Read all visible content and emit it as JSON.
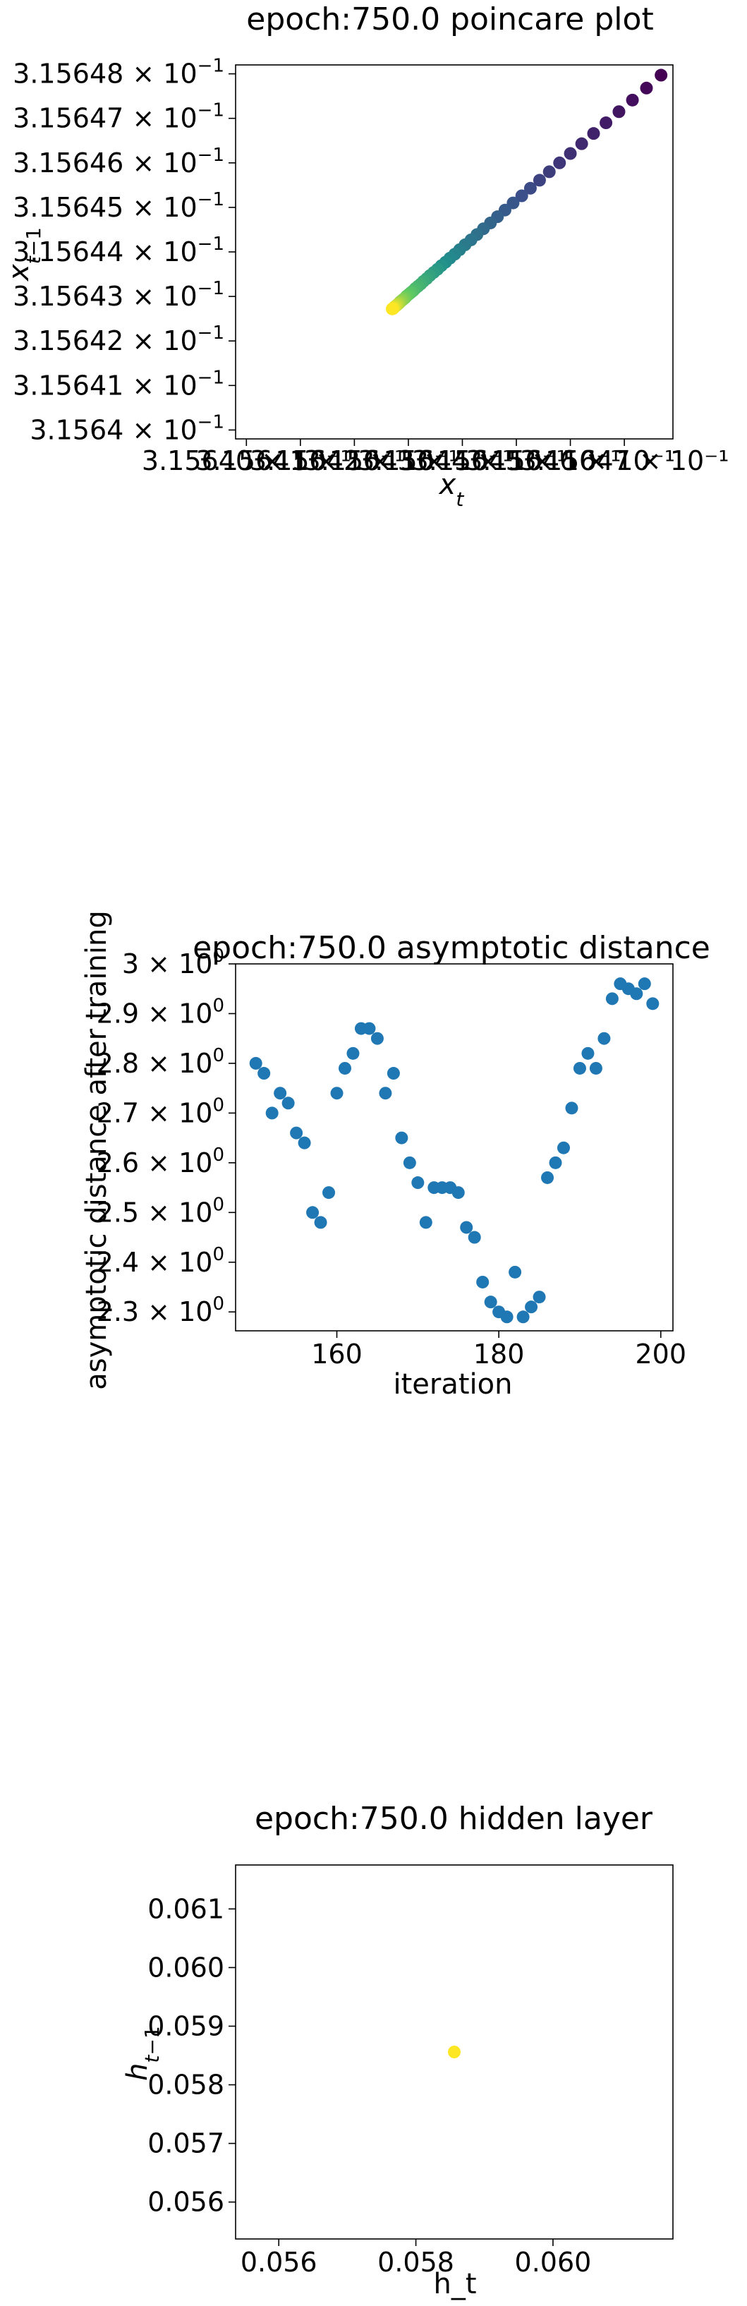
{
  "chart_data": [
    {
      "type": "scatter",
      "title": "epoch:750.0 poincare plot",
      "xlabel": "x_t",
      "ylabel": "x_{t-1}",
      "xlim": [
        0.3156398,
        0.3156479
      ],
      "ylim": [
        0.3156398,
        0.3156482
      ],
      "color_scale": "viridis",
      "x_tick_labels": [
        "3.15640 × 10⁻¹",
        "3.15641 × 10⁻¹",
        "3.15642 × 10⁻¹",
        "3.15643 × 10⁻¹",
        "3.15644 × 10⁻¹",
        "3.15645 × 10⁻¹",
        "3.15646 × 10⁻¹",
        "3.15647 × 10⁻¹"
      ],
      "x_ticks": [
        0.31564,
        0.315641,
        0.315642,
        0.315643,
        0.315644,
        0.315645,
        0.315646,
        0.315647
      ],
      "y_ticks": [
        {
          "value": 0.31564,
          "mant": "3.1564",
          "exp": "−1"
        },
        {
          "value": 0.315641,
          "mant": "3.15641",
          "exp": "−1"
        },
        {
          "value": 0.315642,
          "mant": "3.15642",
          "exp": "−1"
        },
        {
          "value": 0.315643,
          "mant": "3.15643",
          "exp": "−1"
        },
        {
          "value": 0.315644,
          "mant": "3.15644",
          "exp": "−1"
        },
        {
          "value": 0.315645,
          "mant": "3.15645",
          "exp": "−1"
        },
        {
          "value": 0.315646,
          "mant": "3.15646",
          "exp": "−1"
        },
        {
          "value": 0.315647,
          "mant": "3.15647",
          "exp": "−1"
        },
        {
          "value": 0.315648,
          "mant": "3.15648",
          "exp": "−1"
        }
      ],
      "points": [
        [
          0.31564768,
          0.31564797
        ],
        [
          0.31564741,
          0.31564768
        ],
        [
          0.31564715,
          0.31564741
        ],
        [
          0.3156469,
          0.31564715
        ],
        [
          0.31564666,
          0.3156469
        ],
        [
          0.31564643,
          0.31564666
        ],
        [
          0.31564621,
          0.31564643
        ],
        [
          0.315646,
          0.31564621
        ],
        [
          0.3156458,
          0.315646
        ],
        [
          0.31564561,
          0.3156458
        ],
        [
          0.31564543,
          0.31564561
        ],
        [
          0.31564526,
          0.31564543
        ],
        [
          0.3156451,
          0.31564526
        ],
        [
          0.31564494,
          0.3156451
        ],
        [
          0.31564479,
          0.31564494
        ],
        [
          0.31564465,
          0.31564479
        ],
        [
          0.31564452,
          0.31564465
        ],
        [
          0.31564439,
          0.31564452
        ],
        [
          0.31564427,
          0.31564439
        ],
        [
          0.31564416,
          0.31564427
        ],
        [
          0.31564405,
          0.31564416
        ],
        [
          0.31564395,
          0.31564405
        ],
        [
          0.31564386,
          0.31564395
        ],
        [
          0.31564377,
          0.31564386
        ],
        [
          0.31564369,
          0.31564377
        ],
        [
          0.31564361,
          0.31564369
        ],
        [
          0.31564354,
          0.31564361
        ],
        [
          0.31564347,
          0.31564354
        ],
        [
          0.3156434,
          0.31564347
        ],
        [
          0.31564334,
          0.3156434
        ],
        [
          0.31564328,
          0.31564334
        ],
        [
          0.31564323,
          0.31564328
        ],
        [
          0.31564318,
          0.31564323
        ],
        [
          0.31564313,
          0.31564318
        ],
        [
          0.31564309,
          0.31564313
        ],
        [
          0.31564305,
          0.31564309
        ],
        [
          0.31564301,
          0.31564305
        ],
        [
          0.31564297,
          0.31564301
        ],
        [
          0.31564294,
          0.31564297
        ],
        [
          0.31564291,
          0.31564294
        ],
        [
          0.31564288,
          0.31564291
        ],
        [
          0.31564285,
          0.31564288
        ],
        [
          0.31564283,
          0.31564285
        ],
        [
          0.31564281,
          0.31564283
        ],
        [
          0.31564279,
          0.31564281
        ],
        [
          0.31564277,
          0.31564279
        ],
        [
          0.31564275,
          0.31564277
        ],
        [
          0.31564273,
          0.31564275
        ],
        [
          0.31564272,
          0.31564273
        ],
        [
          0.3156427,
          0.31564272
        ]
      ]
    },
    {
      "type": "scatter",
      "title": "epoch:750.0 asymptotic distance",
      "xlabel": "iteration",
      "ylabel": "asymptotic distance after training",
      "xlim": [
        147.5,
        201.5
      ],
      "ylim": [
        2.262,
        3.0
      ],
      "color": "#1f77b4",
      "x_ticks": [
        160,
        180,
        200
      ],
      "y_ticks": [
        {
          "value": 2.3,
          "mant": "2.3",
          "exp": "0"
        },
        {
          "value": 2.4,
          "mant": "2.4",
          "exp": "0"
        },
        {
          "value": 2.5,
          "mant": "2.5",
          "exp": "0"
        },
        {
          "value": 2.6,
          "mant": "2.6",
          "exp": "0"
        },
        {
          "value": 2.7,
          "mant": "2.7",
          "exp": "0"
        },
        {
          "value": 2.8,
          "mant": "2.8",
          "exp": "0"
        },
        {
          "value": 2.9,
          "mant": "2.9",
          "exp": "0"
        },
        {
          "value": 3.0,
          "mant": "3",
          "exp": "0"
        }
      ],
      "x": [
        150,
        151,
        152,
        153,
        154,
        155,
        156,
        157,
        158,
        159,
        160,
        161,
        162,
        163,
        164,
        165,
        166,
        167,
        168,
        169,
        170,
        171,
        172,
        173,
        174,
        175,
        176,
        177,
        178,
        179,
        180,
        181,
        182,
        183,
        184,
        185,
        186,
        187,
        188,
        189,
        190,
        191,
        192,
        193,
        194,
        195,
        196,
        197,
        198,
        199
      ],
      "y": [
        2.8,
        2.78,
        2.7,
        2.74,
        2.72,
        2.66,
        2.64,
        2.5,
        2.48,
        2.54,
        2.74,
        2.79,
        2.82,
        2.87,
        2.87,
        2.85,
        2.74,
        2.78,
        2.65,
        2.6,
        2.56,
        2.48,
        2.55,
        2.55,
        2.55,
        2.54,
        2.47,
        2.45,
        2.36,
        2.32,
        2.3,
        2.29,
        2.38,
        2.29,
        2.31,
        2.33,
        2.57,
        2.6,
        2.63,
        2.71,
        2.79,
        2.82,
        2.79,
        2.85,
        2.93,
        2.96,
        2.95,
        2.94,
        2.96,
        2.92
      ]
    },
    {
      "type": "scatter",
      "title": "epoch:750.0 hidden layer",
      "xlabel": "h_t",
      "ylabel": "h_{t-1}",
      "xlim": [
        0.05537,
        0.06175
      ],
      "ylim": [
        0.05537,
        0.06175
      ],
      "color": "#fde725",
      "x_ticks": [
        {
          "value": 0.056,
          "label": "0.056"
        },
        {
          "value": 0.058,
          "label": "0.058"
        },
        {
          "value": 0.06,
          "label": "0.060"
        }
      ],
      "y_ticks": [
        {
          "value": 0.056,
          "label": "0.056"
        },
        {
          "value": 0.057,
          "label": "0.057"
        },
        {
          "value": 0.058,
          "label": "0.058"
        },
        {
          "value": 0.059,
          "label": "0.059"
        },
        {
          "value": 0.06,
          "label": "0.060"
        },
        {
          "value": 0.061,
          "label": "0.061"
        }
      ],
      "points": [
        [
          0.05856,
          0.05856
        ]
      ]
    }
  ]
}
